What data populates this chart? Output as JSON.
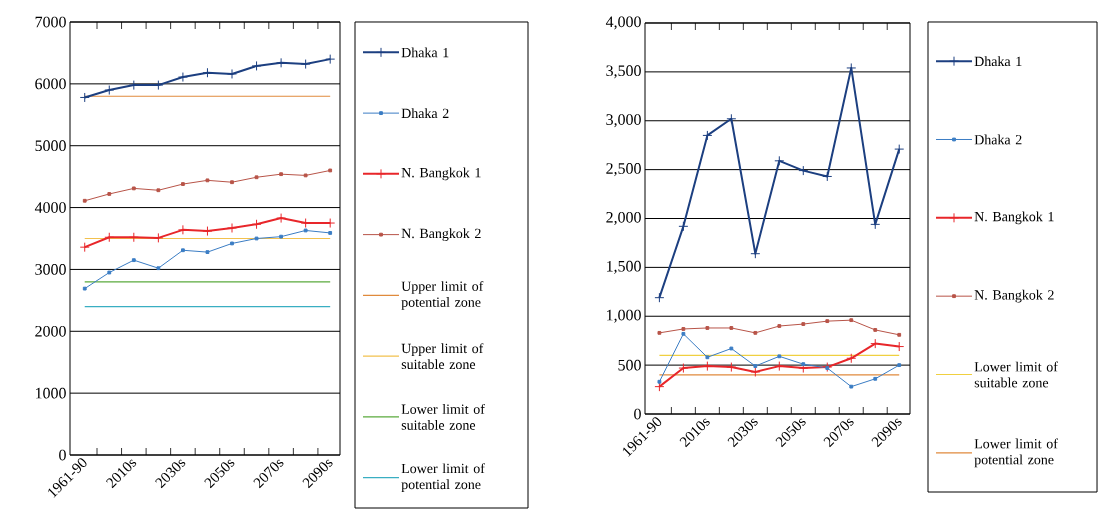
{
  "chart_data": [
    {
      "type": "line",
      "categories": [
        "1961-90",
        null,
        "2010s",
        null,
        "2030s",
        null,
        "2050s",
        null,
        "2070s",
        null,
        "2090s"
      ],
      "ylim": [
        0,
        7000
      ],
      "yticks": [
        0,
        1000,
        2000,
        3000,
        4000,
        5000,
        6000,
        7000
      ],
      "grid": "y",
      "legend": "right",
      "series": [
        {
          "name": "Dhaka 1",
          "color": "#1c3f80",
          "marker": "cross",
          "values": [
            5780,
            5900,
            5980,
            5980,
            6110,
            6180,
            6160,
            6290,
            6340,
            6320,
            6400
          ]
        },
        {
          "name": "Dhaka 2",
          "color": "#3b7dc4",
          "marker": "square",
          "values": [
            2690,
            2950,
            3150,
            3020,
            3310,
            3280,
            3420,
            3500,
            3530,
            3630,
            3590
          ]
        },
        {
          "name": "N. Bangkok 1",
          "color": "#e8262a",
          "marker": "cross",
          "values": [
            3360,
            3520,
            3520,
            3510,
            3640,
            3620,
            3670,
            3730,
            3830,
            3750,
            3750
          ]
        },
        {
          "name": "N. Bangkok 2",
          "color": "#b85448",
          "marker": "square",
          "values": [
            4110,
            4220,
            4310,
            4280,
            4380,
            4440,
            4410,
            4490,
            4540,
            4520,
            4600
          ]
        },
        {
          "name": "Upper limit of potential zone",
          "color": "#e08a3c",
          "marker": "none",
          "values": [
            5800,
            5800,
            5800,
            5800,
            5800,
            5800,
            5800,
            5800,
            5800,
            5800,
            5800
          ]
        },
        {
          "name": "Upper limit of suitable zone",
          "color": "#f2c14e",
          "marker": "none",
          "values": [
            3500,
            3500,
            3500,
            3500,
            3500,
            3500,
            3500,
            3500,
            3500,
            3500,
            3500
          ]
        },
        {
          "name": "Lower limit of suitable zone",
          "color": "#5aaa3c",
          "marker": "none",
          "values": [
            2800,
            2800,
            2800,
            2800,
            2800,
            2800,
            2800,
            2800,
            2800,
            2800,
            2800
          ]
        },
        {
          "name": "Lower limit of potential zone",
          "color": "#3aaec2",
          "marker": "none",
          "values": [
            2400,
            2400,
            2400,
            2400,
            2400,
            2400,
            2400,
            2400,
            2400,
            2400,
            2400
          ]
        }
      ]
    },
    {
      "type": "line",
      "categories": [
        "1961-90",
        null,
        "2010s",
        null,
        "2030s",
        null,
        "2050s",
        null,
        "2070s",
        null,
        "2090s"
      ],
      "ylim": [
        0,
        4000
      ],
      "yticks": [
        0,
        500,
        {
          "value": 1000,
          "label": "1,000"
        },
        {
          "value": 1500,
          "label": "1,500"
        },
        {
          "value": 2000,
          "label": "2,000"
        },
        {
          "value": 2500,
          "label": "2,500"
        },
        {
          "value": 3000,
          "label": "3,000"
        },
        {
          "value": 3500,
          "label": "3,500"
        },
        {
          "value": 4000,
          "label": "4,000"
        }
      ],
      "grid": "y",
      "legend": "right",
      "series": [
        {
          "name": "Dhaka 1",
          "color": "#1c3f80",
          "marker": "cross",
          "values": [
            1190,
            1920,
            2850,
            3020,
            1640,
            2590,
            2490,
            2430,
            3540,
            1940,
            2710
          ]
        },
        {
          "name": "Dhaka 2",
          "color": "#3b7dc4",
          "marker": "square",
          "values": [
            330,
            820,
            580,
            670,
            490,
            590,
            510,
            470,
            280,
            360,
            500
          ]
        },
        {
          "name": "N. Bangkok 1",
          "color": "#e8262a",
          "marker": "cross",
          "values": [
            280,
            470,
            490,
            480,
            430,
            490,
            470,
            480,
            570,
            720,
            690
          ]
        },
        {
          "name": "N. Bangkok 2",
          "color": "#b85448",
          "marker": "square",
          "values": [
            830,
            870,
            880,
            880,
            830,
            900,
            920,
            950,
            960,
            860,
            810
          ]
        },
        {
          "name": "Lower limit of suitable zone",
          "color": "#f0d040",
          "marker": "none",
          "values": [
            600,
            600,
            600,
            600,
            600,
            600,
            600,
            600,
            600,
            600,
            600
          ]
        },
        {
          "name": "Lower limit of potential zone",
          "color": "#e08a3c",
          "marker": "none",
          "values": [
            400,
            400,
            400,
            400,
            400,
            400,
            400,
            400,
            400,
            400,
            400
          ]
        }
      ]
    }
  ]
}
